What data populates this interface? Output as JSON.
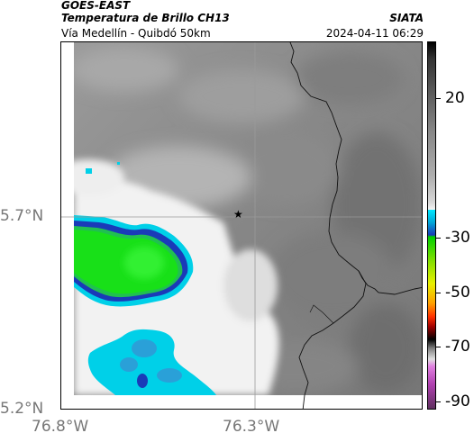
{
  "header": {
    "brand": "GOES-EAST",
    "product": "Temperatura de Brillo CH13",
    "region": "Vía Medellín - Quibdó 50km",
    "org": "SIATA",
    "timestamp": "2024-04-11 06:29"
  },
  "axes": {
    "lat_labels": [
      "5.7°N",
      "5.2°N"
    ],
    "lon_labels": [
      "76.8°W",
      "76.3°W"
    ]
  },
  "marker": {
    "icon": "star-icon",
    "lat": 5.7,
    "lon": -76.35
  },
  "colorbar": {
    "labels": [
      "20",
      "-30",
      "-50",
      "-70",
      "-90"
    ],
    "values": [
      20,
      -30,
      -50,
      -70,
      -90
    ],
    "range": [
      -95,
      35
    ]
  },
  "colors": {
    "cloud_cyan": "#00d0e8",
    "cloud_blue": "#1a3ab8",
    "cloud_green": "#18e018",
    "gray_background": "#8a8a8a"
  }
}
